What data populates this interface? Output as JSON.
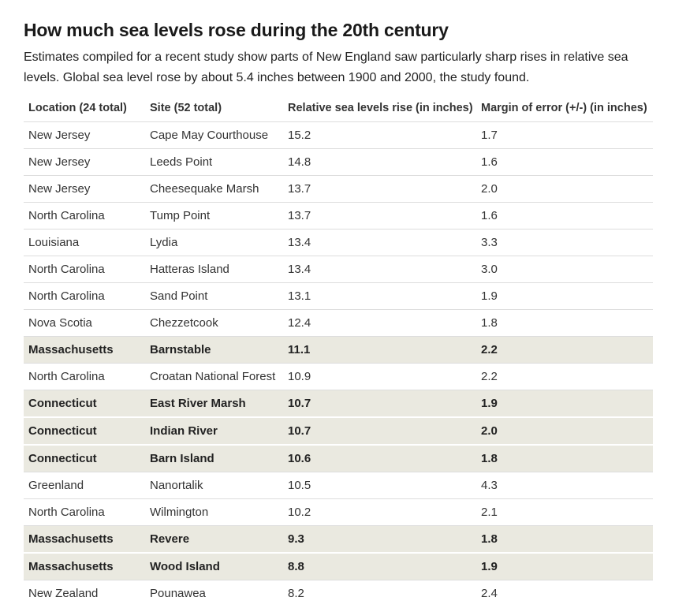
{
  "header": {
    "title": "How much sea levels rose during the 20th century",
    "subtitle": "Estimates compiled for a recent study show parts of New England saw particularly sharp rises in relative sea levels. Global sea level rose by about 5.4 inches between 1900 and 2000, the study found."
  },
  "table": {
    "columns": [
      "Location (24 total)",
      "Site (52 total)",
      "Relative sea levels rise (in inches)",
      "Margin of error (+/-) (in inches)"
    ],
    "rows": [
      {
        "location": "New Jersey",
        "site": "Cape May Courthouse",
        "rise": "15.2",
        "margin": "1.7",
        "highlighted": false
      },
      {
        "location": "New Jersey",
        "site": "Leeds Point",
        "rise": "14.8",
        "margin": "1.6",
        "highlighted": false
      },
      {
        "location": "New Jersey",
        "site": "Cheesequake Marsh",
        "rise": "13.7",
        "margin": "2.0",
        "highlighted": false
      },
      {
        "location": "North Carolina",
        "site": "Tump Point",
        "rise": "13.7",
        "margin": "1.6",
        "highlighted": false
      },
      {
        "location": "Louisiana",
        "site": "Lydia",
        "rise": "13.4",
        "margin": "3.3",
        "highlighted": false
      },
      {
        "location": "North Carolina",
        "site": "Hatteras Island",
        "rise": "13.4",
        "margin": "3.0",
        "highlighted": false
      },
      {
        "location": "North Carolina",
        "site": "Sand Point",
        "rise": "13.1",
        "margin": "1.9",
        "highlighted": false
      },
      {
        "location": "Nova Scotia",
        "site": "Chezzetcook",
        "rise": "12.4",
        "margin": "1.8",
        "highlighted": false
      },
      {
        "location": "Massachusetts",
        "site": "Barnstable",
        "rise": "11.1",
        "margin": "2.2",
        "highlighted": true
      },
      {
        "location": "North Carolina",
        "site": "Croatan National Forest",
        "rise": "10.9",
        "margin": "2.2",
        "highlighted": false
      },
      {
        "location": "Connecticut",
        "site": "East River Marsh",
        "rise": "10.7",
        "margin": "1.9",
        "highlighted": true
      },
      {
        "location": "Connecticut",
        "site": "Indian River",
        "rise": "10.7",
        "margin": "2.0",
        "highlighted": true
      },
      {
        "location": "Connecticut",
        "site": "Barn Island",
        "rise": "10.6",
        "margin": "1.8",
        "highlighted": true
      },
      {
        "location": "Greenland",
        "site": "Nanortalik",
        "rise": "10.5",
        "margin": "4.3",
        "highlighted": false
      },
      {
        "location": "North Carolina",
        "site": "Wilmington",
        "rise": "10.2",
        "margin": "2.1",
        "highlighted": false
      },
      {
        "location": "Massachusetts",
        "site": "Revere",
        "rise": "9.3",
        "margin": "1.8",
        "highlighted": true
      },
      {
        "location": "Massachusetts",
        "site": "Wood Island",
        "rise": "8.8",
        "margin": "1.9",
        "highlighted": true
      },
      {
        "location": "New Zealand",
        "site": "Pounawea",
        "rise": "8.2",
        "margin": "2.4",
        "highlighted": false
      }
    ]
  },
  "colors": {
    "highlight_row_bg": "#eae9e0",
    "row_border": "#dddddd",
    "body_text": "#333333",
    "title_text": "#1a1a1a"
  },
  "chart_data": {
    "type": "table",
    "title": "How much sea levels rose during the 20th century",
    "subtitle": "Estimates compiled for a recent study show parts of New England saw particularly sharp rises in relative sea levels. Global sea level rose by about 5.4 inches between 1900 and 2000, the study found.",
    "columns": [
      "Location (24 total)",
      "Site (52 total)",
      "Relative sea levels rise (in inches)",
      "Margin of error (+/-) (in inches)"
    ],
    "rows": [
      [
        "New Jersey",
        "Cape May Courthouse",
        15.2,
        1.7
      ],
      [
        "New Jersey",
        "Leeds Point",
        14.8,
        1.6
      ],
      [
        "New Jersey",
        "Cheesequake Marsh",
        13.7,
        2.0
      ],
      [
        "North Carolina",
        "Tump Point",
        13.7,
        1.6
      ],
      [
        "Louisiana",
        "Lydia",
        13.4,
        3.3
      ],
      [
        "North Carolina",
        "Hatteras Island",
        13.4,
        3.0
      ],
      [
        "North Carolina",
        "Sand Point",
        13.1,
        1.9
      ],
      [
        "Nova Scotia",
        "Chezzetcook",
        12.4,
        1.8
      ],
      [
        "Massachusetts",
        "Barnstable",
        11.1,
        2.2
      ],
      [
        "North Carolina",
        "Croatan National Forest",
        10.9,
        2.2
      ],
      [
        "Connecticut",
        "East River Marsh",
        10.7,
        1.9
      ],
      [
        "Connecticut",
        "Indian River",
        10.7,
        2.0
      ],
      [
        "Connecticut",
        "Barn Island",
        10.6,
        1.8
      ],
      [
        "Greenland",
        "Nanortalik",
        10.5,
        4.3
      ],
      [
        "North Carolina",
        "Wilmington",
        10.2,
        2.1
      ],
      [
        "Massachusetts",
        "Revere",
        9.3,
        1.8
      ],
      [
        "Massachusetts",
        "Wood Island",
        8.8,
        1.9
      ],
      [
        "New Zealand",
        "Pounawea",
        8.2,
        2.4
      ]
    ],
    "highlighted_row_indices": [
      8,
      10,
      11,
      12,
      15,
      16
    ],
    "notes": "Highlighted rows (beige, bold) mark New England sites; last row clipped by viewport bottom"
  }
}
